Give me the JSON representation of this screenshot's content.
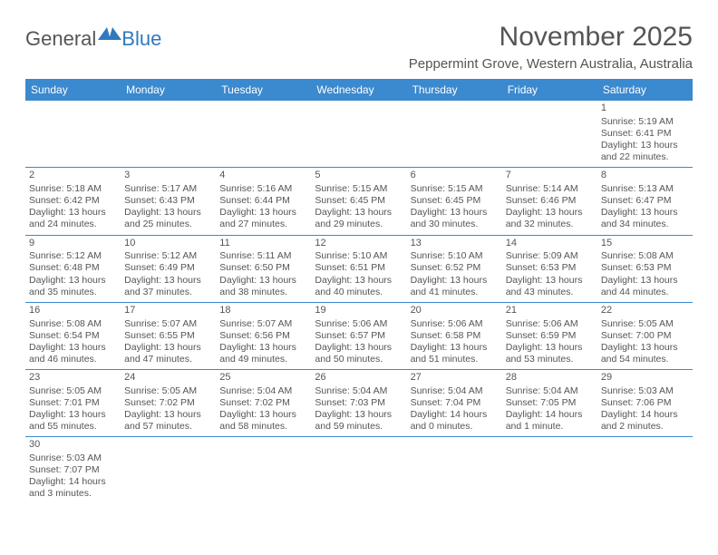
{
  "logo": {
    "text1": "General",
    "text2": "Blue"
  },
  "title": "November 2025",
  "location": "Peppermint Grove, Western Australia, Australia",
  "dayHeaders": [
    "Sunday",
    "Monday",
    "Tuesday",
    "Wednesday",
    "Thursday",
    "Friday",
    "Saturday"
  ],
  "colors": {
    "accent": "#3b89cf",
    "text": "#555555",
    "bg": "#ffffff"
  },
  "weeks": [
    [
      null,
      null,
      null,
      null,
      null,
      null,
      {
        "n": "1",
        "sunrise": "Sunrise: 5:19 AM",
        "sunset": "Sunset: 6:41 PM",
        "daylight": "Daylight: 13 hours and 22 minutes."
      }
    ],
    [
      {
        "n": "2",
        "sunrise": "Sunrise: 5:18 AM",
        "sunset": "Sunset: 6:42 PM",
        "daylight": "Daylight: 13 hours and 24 minutes."
      },
      {
        "n": "3",
        "sunrise": "Sunrise: 5:17 AM",
        "sunset": "Sunset: 6:43 PM",
        "daylight": "Daylight: 13 hours and 25 minutes."
      },
      {
        "n": "4",
        "sunrise": "Sunrise: 5:16 AM",
        "sunset": "Sunset: 6:44 PM",
        "daylight": "Daylight: 13 hours and 27 minutes."
      },
      {
        "n": "5",
        "sunrise": "Sunrise: 5:15 AM",
        "sunset": "Sunset: 6:45 PM",
        "daylight": "Daylight: 13 hours and 29 minutes."
      },
      {
        "n": "6",
        "sunrise": "Sunrise: 5:15 AM",
        "sunset": "Sunset: 6:45 PM",
        "daylight": "Daylight: 13 hours and 30 minutes."
      },
      {
        "n": "7",
        "sunrise": "Sunrise: 5:14 AM",
        "sunset": "Sunset: 6:46 PM",
        "daylight": "Daylight: 13 hours and 32 minutes."
      },
      {
        "n": "8",
        "sunrise": "Sunrise: 5:13 AM",
        "sunset": "Sunset: 6:47 PM",
        "daylight": "Daylight: 13 hours and 34 minutes."
      }
    ],
    [
      {
        "n": "9",
        "sunrise": "Sunrise: 5:12 AM",
        "sunset": "Sunset: 6:48 PM",
        "daylight": "Daylight: 13 hours and 35 minutes."
      },
      {
        "n": "10",
        "sunrise": "Sunrise: 5:12 AM",
        "sunset": "Sunset: 6:49 PM",
        "daylight": "Daylight: 13 hours and 37 minutes."
      },
      {
        "n": "11",
        "sunrise": "Sunrise: 5:11 AM",
        "sunset": "Sunset: 6:50 PM",
        "daylight": "Daylight: 13 hours and 38 minutes."
      },
      {
        "n": "12",
        "sunrise": "Sunrise: 5:10 AM",
        "sunset": "Sunset: 6:51 PM",
        "daylight": "Daylight: 13 hours and 40 minutes."
      },
      {
        "n": "13",
        "sunrise": "Sunrise: 5:10 AM",
        "sunset": "Sunset: 6:52 PM",
        "daylight": "Daylight: 13 hours and 41 minutes."
      },
      {
        "n": "14",
        "sunrise": "Sunrise: 5:09 AM",
        "sunset": "Sunset: 6:53 PM",
        "daylight": "Daylight: 13 hours and 43 minutes."
      },
      {
        "n": "15",
        "sunrise": "Sunrise: 5:08 AM",
        "sunset": "Sunset: 6:53 PM",
        "daylight": "Daylight: 13 hours and 44 minutes."
      }
    ],
    [
      {
        "n": "16",
        "sunrise": "Sunrise: 5:08 AM",
        "sunset": "Sunset: 6:54 PM",
        "daylight": "Daylight: 13 hours and 46 minutes."
      },
      {
        "n": "17",
        "sunrise": "Sunrise: 5:07 AM",
        "sunset": "Sunset: 6:55 PM",
        "daylight": "Daylight: 13 hours and 47 minutes."
      },
      {
        "n": "18",
        "sunrise": "Sunrise: 5:07 AM",
        "sunset": "Sunset: 6:56 PM",
        "daylight": "Daylight: 13 hours and 49 minutes."
      },
      {
        "n": "19",
        "sunrise": "Sunrise: 5:06 AM",
        "sunset": "Sunset: 6:57 PM",
        "daylight": "Daylight: 13 hours and 50 minutes."
      },
      {
        "n": "20",
        "sunrise": "Sunrise: 5:06 AM",
        "sunset": "Sunset: 6:58 PM",
        "daylight": "Daylight: 13 hours and 51 minutes."
      },
      {
        "n": "21",
        "sunrise": "Sunrise: 5:06 AM",
        "sunset": "Sunset: 6:59 PM",
        "daylight": "Daylight: 13 hours and 53 minutes."
      },
      {
        "n": "22",
        "sunrise": "Sunrise: 5:05 AM",
        "sunset": "Sunset: 7:00 PM",
        "daylight": "Daylight: 13 hours and 54 minutes."
      }
    ],
    [
      {
        "n": "23",
        "sunrise": "Sunrise: 5:05 AM",
        "sunset": "Sunset: 7:01 PM",
        "daylight": "Daylight: 13 hours and 55 minutes."
      },
      {
        "n": "24",
        "sunrise": "Sunrise: 5:05 AM",
        "sunset": "Sunset: 7:02 PM",
        "daylight": "Daylight: 13 hours and 57 minutes."
      },
      {
        "n": "25",
        "sunrise": "Sunrise: 5:04 AM",
        "sunset": "Sunset: 7:02 PM",
        "daylight": "Daylight: 13 hours and 58 minutes."
      },
      {
        "n": "26",
        "sunrise": "Sunrise: 5:04 AM",
        "sunset": "Sunset: 7:03 PM",
        "daylight": "Daylight: 13 hours and 59 minutes."
      },
      {
        "n": "27",
        "sunrise": "Sunrise: 5:04 AM",
        "sunset": "Sunset: 7:04 PM",
        "daylight": "Daylight: 14 hours and 0 minutes."
      },
      {
        "n": "28",
        "sunrise": "Sunrise: 5:04 AM",
        "sunset": "Sunset: 7:05 PM",
        "daylight": "Daylight: 14 hours and 1 minute."
      },
      {
        "n": "29",
        "sunrise": "Sunrise: 5:03 AM",
        "sunset": "Sunset: 7:06 PM",
        "daylight": "Daylight: 14 hours and 2 minutes."
      }
    ],
    [
      {
        "n": "30",
        "sunrise": "Sunrise: 5:03 AM",
        "sunset": "Sunset: 7:07 PM",
        "daylight": "Daylight: 14 hours and 3 minutes."
      },
      null,
      null,
      null,
      null,
      null,
      null
    ]
  ]
}
